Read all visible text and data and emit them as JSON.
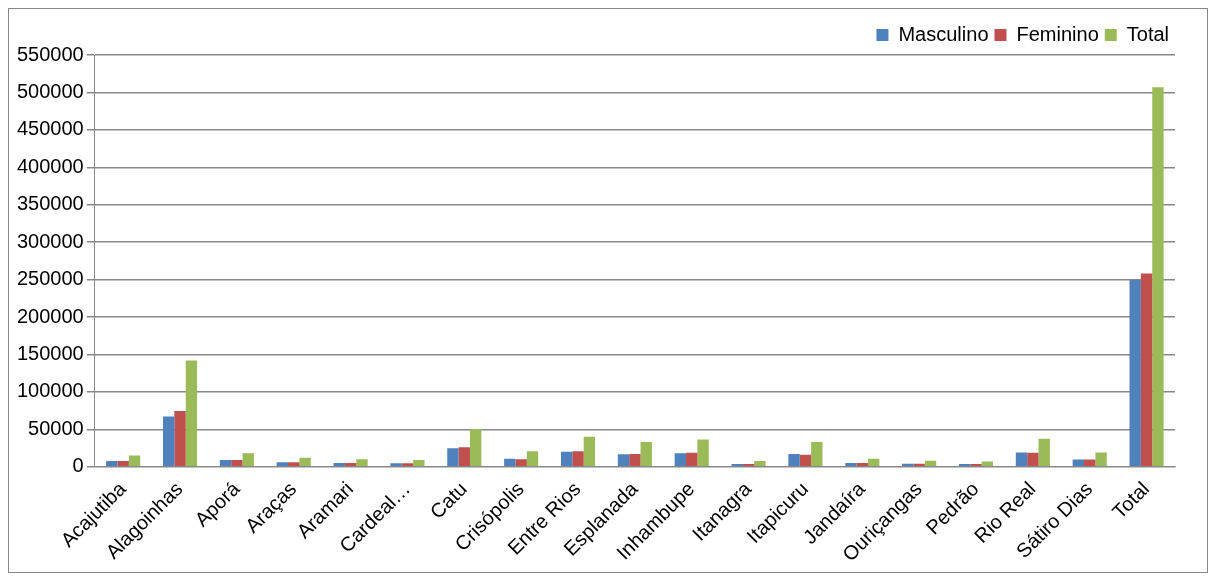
{
  "chart_data": {
    "type": "bar",
    "categories": [
      "Acajutiba",
      "Alagoinhas",
      "Aporá",
      "Araças",
      "Aramari",
      "Cardeal…",
      "Catu",
      "Crisópolis",
      "Entre Rios",
      "Esplanada",
      "Inhambupe",
      "Itanagra",
      "Itapicuru",
      "Jandaíra",
      "Ouriçangas",
      "Pedrão",
      "Rio Real",
      "Sátiro Dias",
      "Total"
    ],
    "series": [
      {
        "name": "Masculino",
        "color": "#4f81bd",
        "values": [
          7500,
          67000,
          9000,
          6000,
          5000,
          4500,
          24500,
          10500,
          20000,
          16500,
          18000,
          3500,
          17000,
          5000,
          4000,
          3500,
          19000,
          9500,
          249500
        ]
      },
      {
        "name": "Feminino",
        "color": "#c0504d",
        "values": [
          7500,
          74500,
          9000,
          6000,
          5000,
          4500,
          26000,
          10000,
          20500,
          17000,
          18500,
          3500,
          16000,
          5000,
          4000,
          3500,
          18500,
          9500,
          258000
        ]
      },
      {
        "name": "Total",
        "color": "#9bbb59",
        "values": [
          15000,
          142000,
          18000,
          12000,
          10000,
          9000,
          50500,
          20500,
          40000,
          33000,
          36500,
          7500,
          33000,
          10500,
          8000,
          7000,
          37500,
          19000,
          507000
        ]
      }
    ],
    "ylim": [
      0,
      550000
    ],
    "yticks": [
      0,
      50000,
      100000,
      150000,
      200000,
      250000,
      300000,
      350000,
      400000,
      450000,
      500000,
      550000
    ],
    "grid": "y",
    "legend": "top right"
  }
}
